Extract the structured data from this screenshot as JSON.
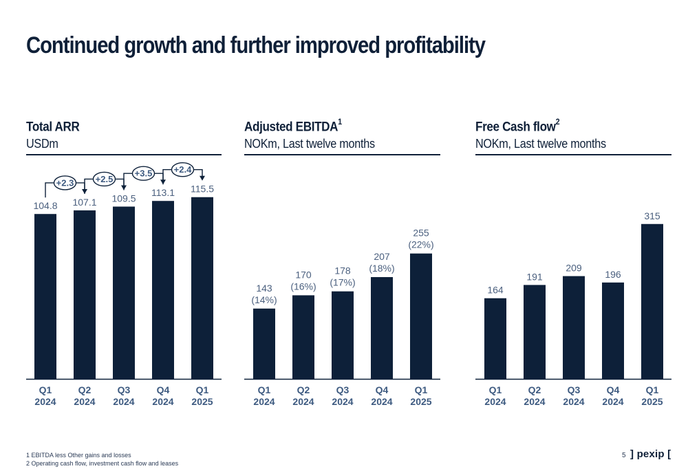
{
  "page": {
    "title": "Continued growth and further improved profitability",
    "page_number": "5",
    "logo_text": "] pexip [",
    "footnotes": [
      "1 EBITDA less Other gains and losses",
      "2 Operating cash flow, investment cash flow and leases"
    ],
    "colors": {
      "bar": "#0d2039",
      "text": "#0f2038",
      "value_label": "#4a5f7e",
      "tick_label": "#3d5a80"
    }
  },
  "panels": [
    {
      "title": "Total ARR",
      "title_sup": "",
      "subtitle": "USDm"
    },
    {
      "title": "Adjusted EBITDA",
      "title_sup": "1",
      "subtitle": "NOKm, Last twelve months"
    },
    {
      "title": "Free Cash flow",
      "title_sup": "2",
      "subtitle": "NOKm, Last twelve months"
    }
  ],
  "chart_data": [
    {
      "type": "bar",
      "title": "Total ARR",
      "ylabel": "USDm",
      "categories": [
        "Q1 2024",
        "Q2 2024",
        "Q3 2024",
        "Q4 2024",
        "Q1 2025"
      ],
      "category_lines": [
        [
          "Q1",
          "2024"
        ],
        [
          "Q2",
          "2024"
        ],
        [
          "Q3",
          "2024"
        ],
        [
          "Q4",
          "2024"
        ],
        [
          "Q1",
          "2025"
        ]
      ],
      "values": [
        104.8,
        107.1,
        109.5,
        113.1,
        115.5
      ],
      "value_labels": [
        "104.8",
        "107.1",
        "109.5",
        "113.1",
        "115.5"
      ],
      "deltas": [
        "+2.3",
        "+2.5",
        "+3.5",
        "+2.4"
      ],
      "ylim": [
        0,
        130
      ]
    },
    {
      "type": "bar",
      "title": "Adjusted EBITDA",
      "ylabel": "NOKm, Last twelve months",
      "categories": [
        "Q1 2024",
        "Q2 2024",
        "Q3 2024",
        "Q4 2024",
        "Q1 2025"
      ],
      "category_lines": [
        [
          "Q1",
          "2024"
        ],
        [
          "Q2",
          "2024"
        ],
        [
          "Q3",
          "2024"
        ],
        [
          "Q4",
          "2024"
        ],
        [
          "Q1",
          "2025"
        ]
      ],
      "values": [
        143,
        170,
        178,
        207,
        255
      ],
      "value_labels": [
        "143",
        "170",
        "178",
        "207",
        "255"
      ],
      "margin_labels": [
        "(14%)",
        "(16%)",
        "(17%)",
        "(18%)",
        "(22%)"
      ],
      "ylim": [
        0,
        400
      ]
    },
    {
      "type": "bar",
      "title": "Free Cash flow",
      "ylabel": "NOKm, Last twelve months",
      "categories": [
        "Q1 2024",
        "Q2 2024",
        "Q3 2024",
        "Q4 2024",
        "Q1 2025"
      ],
      "category_lines": [
        [
          "Q1",
          "2024"
        ],
        [
          "Q2",
          "2024"
        ],
        [
          "Q3",
          "2024"
        ],
        [
          "Q4",
          "2024"
        ],
        [
          "Q1",
          "2025"
        ]
      ],
      "values": [
        164,
        191,
        209,
        196,
        315
      ],
      "value_labels": [
        "164",
        "191",
        "209",
        "196",
        "315"
      ],
      "ylim": [
        0,
        410
      ]
    }
  ]
}
